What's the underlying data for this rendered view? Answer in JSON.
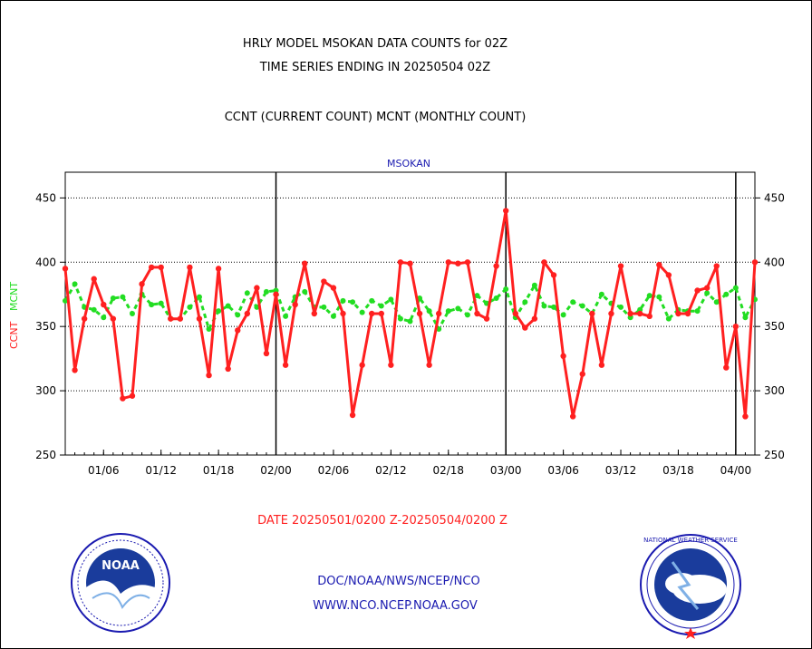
{
  "header": {
    "line1": "HRLY MODEL MSOKAN DATA COUNTS for 02Z",
    "line2": "TIME SERIES ENDING IN 20250504 02Z",
    "line3": "CCNT (CURRENT COUNT) MCNT (MONTHLY COUNT)"
  },
  "footer": {
    "date_range": "DATE 20250501/0200 Z-20250504/0200 Z",
    "org": "DOC/NOAA/NWS/NCEP/NCO",
    "url": "WWW.NCO.NCEP.NOAA.GOV"
  },
  "logos": {
    "noaa_text": "NOAA",
    "nws_text": "NATIONAL WEATHER SERVICE"
  },
  "colors": {
    "ccnt": "#ff2020",
    "mcnt": "#22dd22",
    "title": "#000000",
    "link": "#1a1ab0"
  },
  "chart_data": {
    "type": "line",
    "title": "MSOKAN",
    "ylabel_left_ccnt": "CCNT",
    "ylabel_left_mcnt": "MCNT",
    "ylim": [
      250,
      470
    ],
    "yticks": [
      250,
      300,
      350,
      400,
      450
    ],
    "x_tick_labels": [
      "01/06",
      "01/12",
      "01/18",
      "02/00",
      "02/06",
      "02/12",
      "02/18",
      "03/00",
      "03/06",
      "03/12",
      "03/18",
      "04/00"
    ],
    "x_start_hour": 2,
    "x_end_hour": 74,
    "day_boundaries": [
      24,
      48,
      72
    ],
    "grid": true,
    "series": [
      {
        "name": "CCNT",
        "values": [
          395,
          316,
          356,
          387,
          367,
          356,
          294,
          296,
          383,
          396,
          396,
          356,
          356,
          396,
          356,
          312,
          395,
          317,
          347,
          360,
          380,
          329,
          375,
          320,
          367,
          399,
          360,
          385,
          380,
          360,
          281,
          320,
          360,
          360,
          320,
          400,
          399,
          360,
          320,
          360,
          400,
          399,
          400,
          360,
          356,
          397,
          440,
          360,
          349,
          356,
          400,
          390,
          327,
          280,
          313,
          360,
          320,
          360,
          397,
          360,
          360,
          358,
          398,
          390,
          360,
          360,
          378,
          380,
          397,
          318,
          350,
          280,
          400
        ]
      },
      {
        "name": "MCNT",
        "values": [
          370,
          383,
          365,
          363,
          357,
          372,
          373,
          360,
          375,
          367,
          368,
          356,
          356,
          365,
          373,
          348,
          362,
          366,
          359,
          376,
          365,
          377,
          378,
          358,
          373,
          377,
          365,
          365,
          358,
          370,
          369,
          361,
          370,
          366,
          371,
          356,
          354,
          372,
          362,
          348,
          362,
          364,
          359,
          374,
          368,
          372,
          379,
          357,
          369,
          382,
          366,
          365,
          359,
          369,
          366,
          360,
          375,
          368,
          365,
          357,
          363,
          374,
          373,
          356,
          363,
          362,
          362,
          376,
          369,
          375,
          380,
          357,
          371
        ]
      }
    ]
  }
}
